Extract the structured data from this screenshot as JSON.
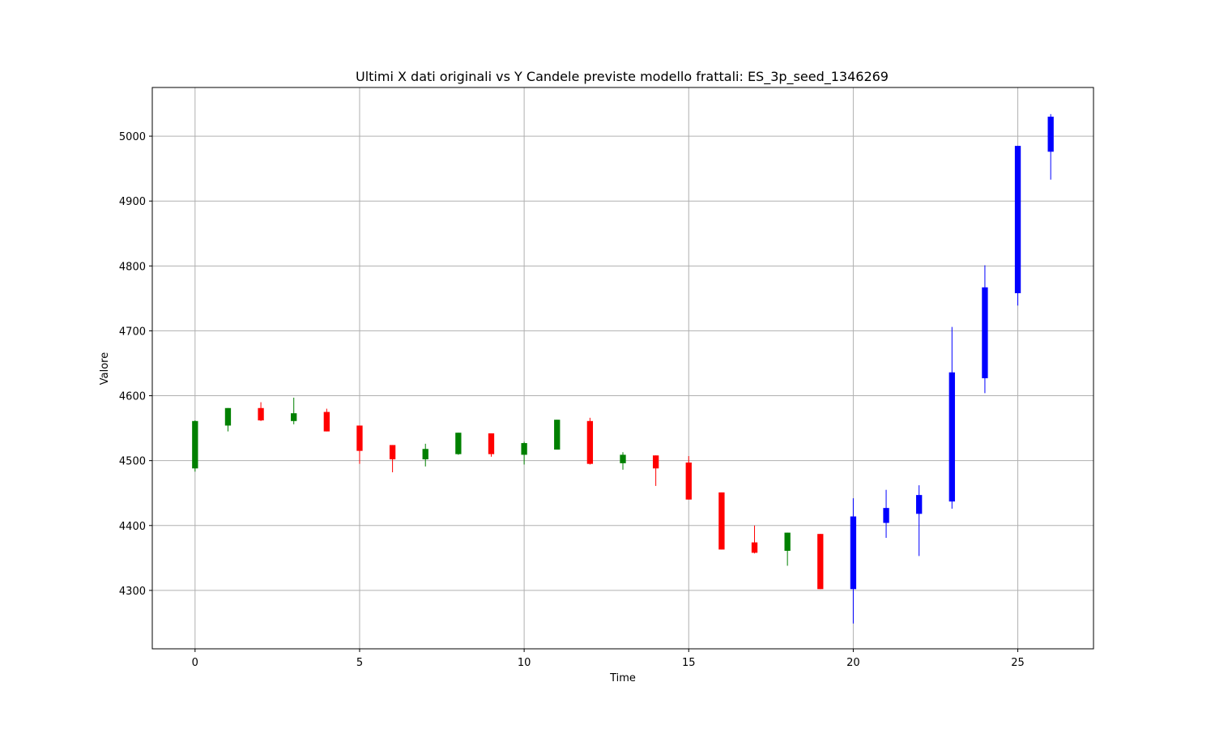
{
  "chart_data": {
    "type": "candlestick",
    "title": "Ultimi X dati originali vs Y Candele previste modello frattali: ES_3p_seed_1346269",
    "xlabel": "Time",
    "ylabel": "Valore",
    "xlim": [
      -1.3,
      27.3
    ],
    "ylim": [
      4210,
      5075
    ],
    "xticks": [
      0,
      5,
      10,
      15,
      20,
      25
    ],
    "yticks": [
      4300,
      4400,
      4500,
      4600,
      4700,
      4800,
      4900,
      5000
    ],
    "grid": true,
    "colors": {
      "up": "#008000",
      "down": "#ff0000",
      "predicted": "#0000ff"
    },
    "candles": [
      {
        "x": 0,
        "open": 4488,
        "high": 4562,
        "low": 4483,
        "close": 4561,
        "color": "up"
      },
      {
        "x": 1,
        "open": 4554,
        "high": 4581,
        "low": 4545,
        "close": 4581,
        "color": "up"
      },
      {
        "x": 2,
        "open": 4581,
        "high": 4590,
        "low": 4561,
        "close": 4562,
        "color": "down"
      },
      {
        "x": 3,
        "open": 4561,
        "high": 4597,
        "low": 4556,
        "close": 4573,
        "color": "up"
      },
      {
        "x": 4,
        "open": 4575,
        "high": 4580,
        "low": 4545,
        "close": 4545,
        "color": "down"
      },
      {
        "x": 5,
        "open": 4554,
        "high": 4554,
        "low": 4495,
        "close": 4515,
        "color": "down"
      },
      {
        "x": 6,
        "open": 4524,
        "high": 4524,
        "low": 4482,
        "close": 4502,
        "color": "down"
      },
      {
        "x": 7,
        "open": 4502,
        "high": 4526,
        "low": 4491,
        "close": 4518,
        "color": "up"
      },
      {
        "x": 8,
        "open": 4510,
        "high": 4543,
        "low": 4509,
        "close": 4543,
        "color": "up"
      },
      {
        "x": 9,
        "open": 4542,
        "high": 4542,
        "low": 4506,
        "close": 4510,
        "color": "down"
      },
      {
        "x": 10,
        "open": 4509,
        "high": 4529,
        "low": 4494,
        "close": 4527,
        "color": "up"
      },
      {
        "x": 11,
        "open": 4517,
        "high": 4563,
        "low": 4517,
        "close": 4563,
        "color": "up"
      },
      {
        "x": 12,
        "open": 4561,
        "high": 4566,
        "low": 4494,
        "close": 4495,
        "color": "down"
      },
      {
        "x": 13,
        "open": 4496,
        "high": 4513,
        "low": 4486,
        "close": 4509,
        "color": "up"
      },
      {
        "x": 14,
        "open": 4508,
        "high": 4508,
        "low": 4461,
        "close": 4488,
        "color": "down"
      },
      {
        "x": 15,
        "open": 4497,
        "high": 4507,
        "low": 4440,
        "close": 4440,
        "color": "down"
      },
      {
        "x": 16,
        "open": 4451,
        "high": 4451,
        "low": 4363,
        "close": 4363,
        "color": "down"
      },
      {
        "x": 17,
        "open": 4374,
        "high": 4400,
        "low": 4357,
        "close": 4358,
        "color": "down"
      },
      {
        "x": 18,
        "open": 4361,
        "high": 4389,
        "low": 4338,
        "close": 4389,
        "color": "up"
      },
      {
        "x": 19,
        "open": 4387,
        "high": 4387,
        "low": 4302,
        "close": 4302,
        "color": "down"
      },
      {
        "x": 20,
        "open": 4302,
        "high": 4442,
        "low": 4249,
        "close": 4414,
        "color": "predicted"
      },
      {
        "x": 21,
        "open": 4404,
        "high": 4455,
        "low": 4381,
        "close": 4427,
        "color": "predicted"
      },
      {
        "x": 22,
        "open": 4418,
        "high": 4462,
        "low": 4353,
        "close": 4447,
        "color": "predicted"
      },
      {
        "x": 23,
        "open": 4437,
        "high": 4706,
        "low": 4426,
        "close": 4636,
        "color": "predicted"
      },
      {
        "x": 24,
        "open": 4627,
        "high": 4801,
        "low": 4604,
        "close": 4767,
        "color": "predicted"
      },
      {
        "x": 25,
        "open": 4758,
        "high": 4985,
        "low": 4739,
        "close": 4985,
        "color": "predicted"
      },
      {
        "x": 26,
        "open": 4976,
        "high": 5034,
        "low": 4933,
        "close": 5030,
        "color": "predicted"
      }
    ]
  }
}
